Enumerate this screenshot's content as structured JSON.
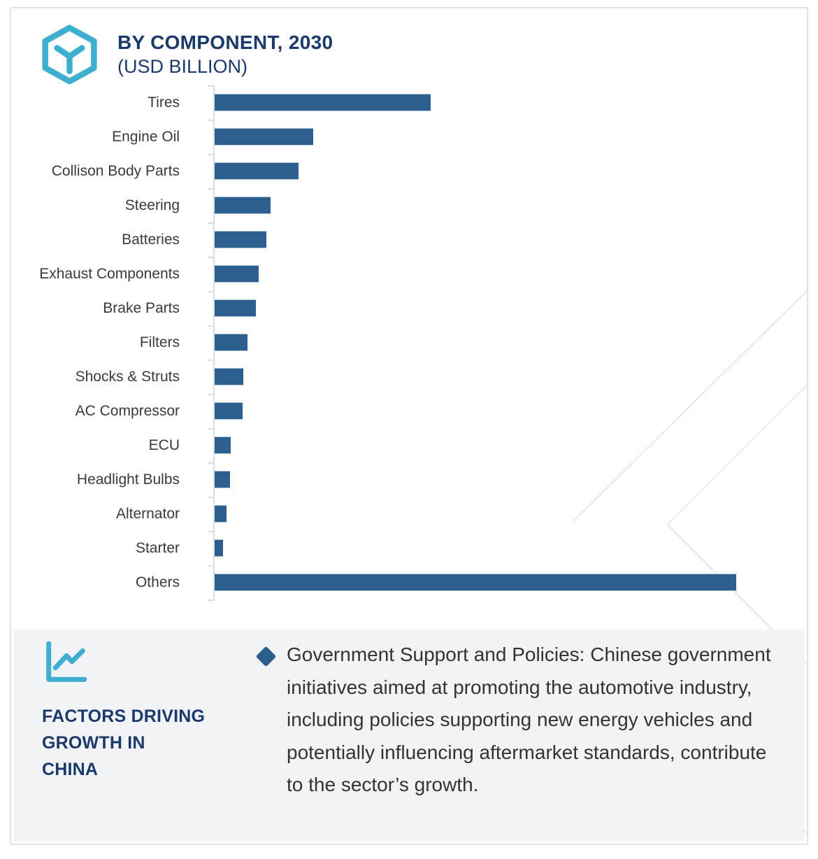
{
  "header": {
    "title": "BY COMPONENT, 2030",
    "subtitle": "(USD BILLION)",
    "icon": "hexagon-component-icon"
  },
  "chart_data": {
    "type": "bar",
    "orientation": "horizontal",
    "title": "BY COMPONENT, 2030",
    "subtitle": "(USD BILLION)",
    "unit": "USD Billion",
    "categories": [
      "Tires",
      "Engine Oil",
      "Collison Body Parts",
      "Steering",
      "Batteries",
      "Exhaust Components",
      "Brake Parts",
      "Filters",
      "Shocks & Struts",
      "AC Compressor",
      "ECU",
      "Headlight Bulbs",
      "Alternator",
      "Starter",
      "Others"
    ],
    "values": [
      30.9,
      14.1,
      12.0,
      8.0,
      7.4,
      6.3,
      5.9,
      4.7,
      4.1,
      4.0,
      2.3,
      2.2,
      1.7,
      1.2,
      74.6
    ],
    "bar_color": "#2d5f8e",
    "x_axis_ticks_visible": false,
    "gridlines": false,
    "value_labels_shown": false,
    "legend": "none"
  },
  "factors_panel": {
    "icon": "line-chart-icon",
    "heading": "FACTORS DRIVING\nGROWTH IN\nCHINA",
    "bullets": [
      {
        "marker": "diamond-bullet-icon",
        "text": "Government Support and Policies: Chinese government initiatives aimed at promoting the automotive industry, including policies supporting new energy vehicles and potentially influencing aftermarket standards, contribute to the sector’s growth."
      }
    ]
  },
  "colors": {
    "accent_teal": "#3fafd0",
    "navy": "#1b3a6b",
    "bar_blue": "#2d5f8e",
    "text_dark": "#333333",
    "label_gray": "#3a3a3a",
    "panel_bg": "#f2f3f7",
    "axis_gray": "#dcdce2",
    "watermark_gray": "#ededf1",
    "border_gray": "#e4e4e8"
  }
}
